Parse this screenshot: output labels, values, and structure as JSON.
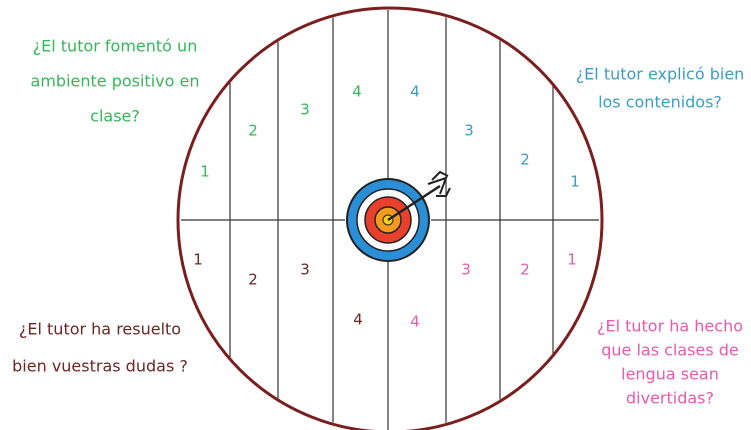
{
  "quadrants": [
    {
      "question": [
        "¿El tutor fomentó un",
        "ambiente positivo en",
        "clase?"
      ],
      "color": "#35b75a",
      "numbers": [
        "1",
        "2",
        "3",
        "4"
      ]
    },
    {
      "question": [
        "¿El tutor explicó bien",
        "los contenidos?"
      ],
      "color": "#3a9ec4",
      "numbers": [
        "4",
        "3",
        "2",
        "1"
      ]
    },
    {
      "question": [
        "¿El tutor ha resuelto",
        "bien vuestras dudas ?"
      ],
      "color": "#6e2525",
      "numbers": [
        "1",
        "2",
        "3",
        "4"
      ]
    },
    {
      "question": [
        "¿El tutor ha hecho",
        "que las clases de",
        "lengua sean",
        "divertidas?"
      ],
      "color": "#e75aae",
      "numbers": [
        "3",
        "2",
        "1",
        "4"
      ]
    }
  ]
}
